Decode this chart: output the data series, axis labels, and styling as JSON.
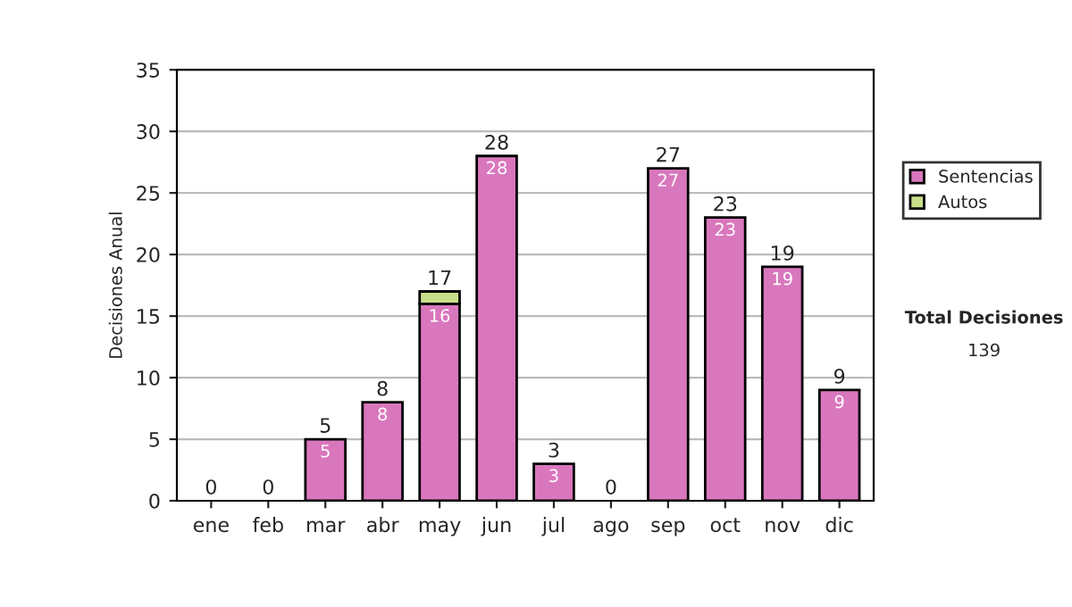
{
  "chart_data": {
    "type": "bar",
    "stacked": true,
    "ylabel": "Decisiones Anual",
    "categories": [
      "ene",
      "feb",
      "mar",
      "abr",
      "may",
      "jun",
      "jul",
      "ago",
      "sep",
      "oct",
      "nov",
      "dic"
    ],
    "series": [
      {
        "name": "Sentencias",
        "color": "#d977bd",
        "values": [
          0,
          0,
          5,
          8,
          16,
          28,
          3,
          0,
          27,
          23,
          19,
          9
        ],
        "value_labels": [
          null,
          null,
          "5",
          "8",
          "16",
          "28",
          "3",
          null,
          "27",
          "23",
          "19",
          "9"
        ]
      },
      {
        "name": "Autos",
        "color": "#c8e08a",
        "values": [
          0,
          0,
          0,
          0,
          1,
          0,
          0,
          0,
          0,
          0,
          0,
          0
        ]
      }
    ],
    "totals": [
      "0",
      "0",
      "5",
      "8",
      "17",
      "28",
      "3",
      "0",
      "27",
      "23",
      "19",
      "9"
    ],
    "ylim": [
      0,
      35
    ],
    "yticks": [
      0,
      5,
      10,
      15,
      20,
      25,
      30,
      35
    ],
    "grid": "y",
    "legend": "right",
    "annotations": [
      "Total Decisiones",
      "139"
    ]
  }
}
